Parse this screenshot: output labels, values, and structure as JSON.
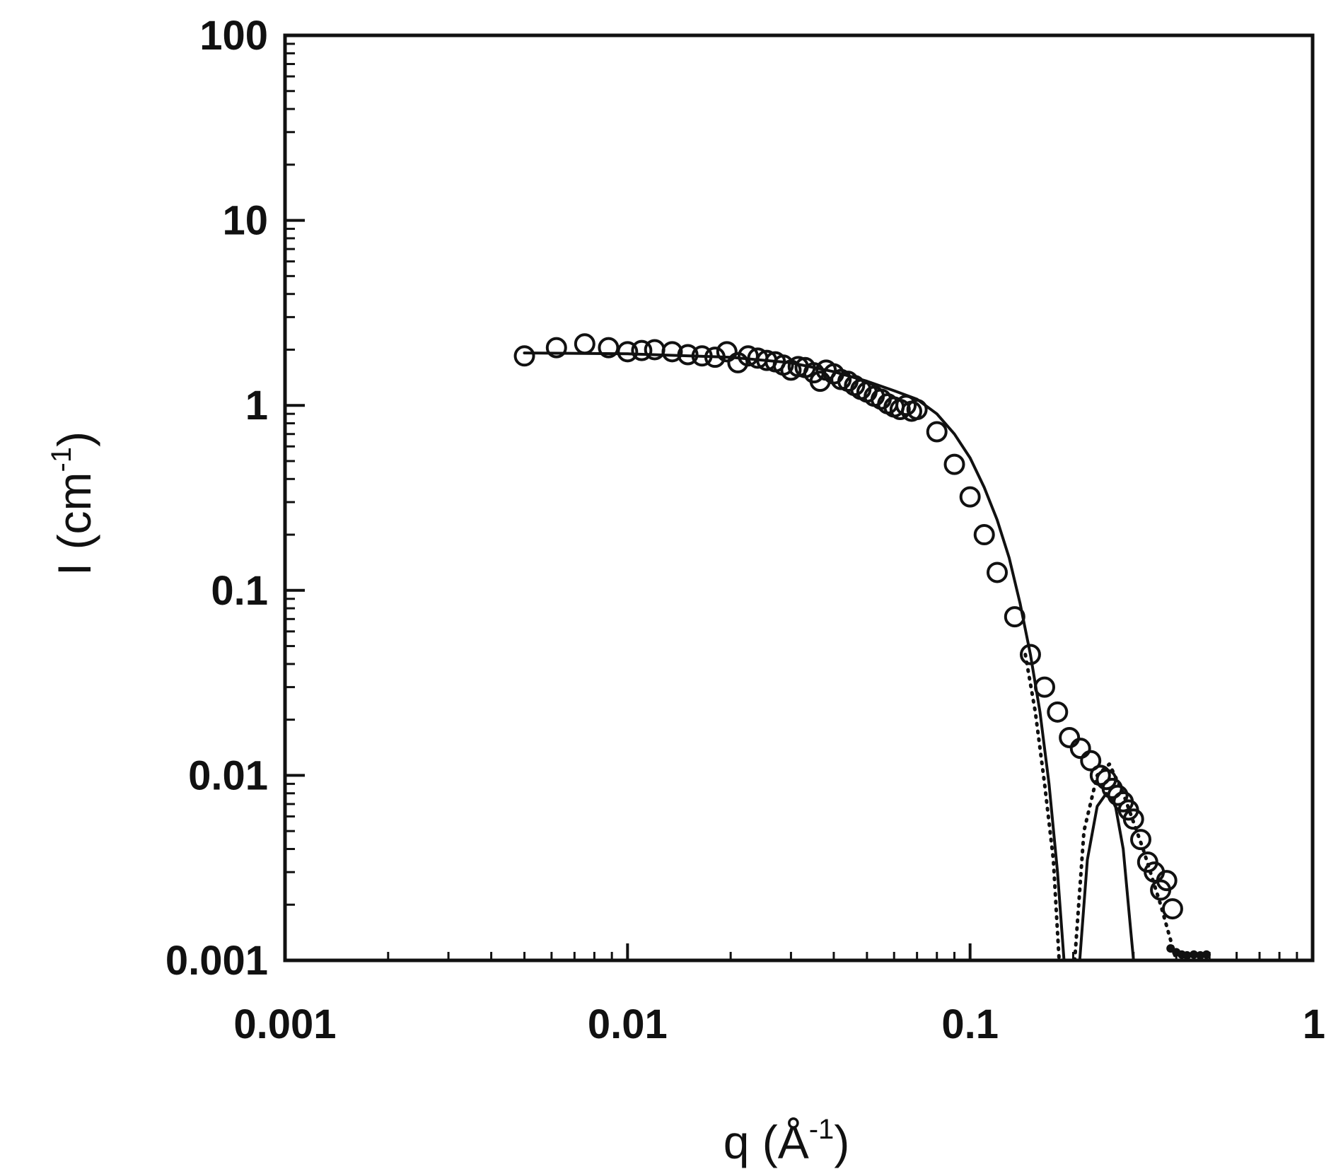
{
  "chart_data": {
    "type": "scatter",
    "title": "",
    "xlabel": {
      "base": "q (Å",
      "sup": "-1",
      "tail": ")"
    },
    "ylabel": {
      "base": "I (cm",
      "sup": "-1",
      "tail": ")"
    },
    "xscale": "log",
    "yscale": "log",
    "xlim": [
      0.001,
      1
    ],
    "ylim": [
      0.001,
      100
    ],
    "grid": false,
    "legend": "none",
    "x_tick_labels": [
      "0.001",
      "0.01",
      "0.1",
      "1"
    ],
    "x_tick_values": [
      0.001,
      0.01,
      0.1,
      1
    ],
    "y_tick_labels": [
      "0.001",
      "0.01",
      "0.1",
      "1",
      "10",
      "100"
    ],
    "y_tick_values": [
      0.001,
      0.01,
      0.1,
      1,
      10,
      100
    ],
    "colors": {
      "ink": "#111111",
      "background": "#ffffff"
    },
    "series": [
      {
        "kind": "markers",
        "marker": "open-circle",
        "points": [
          [
            0.005,
            1.85
          ],
          [
            0.0062,
            2.05
          ],
          [
            0.0075,
            2.15
          ],
          [
            0.0088,
            2.05
          ],
          [
            0.01,
            1.95
          ],
          [
            0.011,
            1.98
          ],
          [
            0.012,
            2.0
          ],
          [
            0.0135,
            1.95
          ],
          [
            0.015,
            1.88
          ],
          [
            0.0165,
            1.85
          ],
          [
            0.018,
            1.82
          ],
          [
            0.0195,
            1.95
          ],
          [
            0.021,
            1.7
          ],
          [
            0.0225,
            1.85
          ],
          [
            0.024,
            1.8
          ],
          [
            0.0255,
            1.75
          ],
          [
            0.027,
            1.72
          ],
          [
            0.0285,
            1.65
          ],
          [
            0.03,
            1.55
          ],
          [
            0.0315,
            1.62
          ],
          [
            0.033,
            1.6
          ],
          [
            0.035,
            1.5
          ],
          [
            0.0365,
            1.35
          ],
          [
            0.038,
            1.55
          ],
          [
            0.04,
            1.48
          ],
          [
            0.042,
            1.38
          ],
          [
            0.044,
            1.35
          ],
          [
            0.046,
            1.28
          ],
          [
            0.048,
            1.22
          ],
          [
            0.05,
            1.18
          ],
          [
            0.0525,
            1.12
          ],
          [
            0.055,
            1.08
          ],
          [
            0.0575,
            1.02
          ],
          [
            0.06,
            0.98
          ],
          [
            0.0625,
            0.95
          ],
          [
            0.065,
            1.0
          ],
          [
            0.0675,
            0.93
          ],
          [
            0.07,
            0.95
          ],
          [
            0.08,
            0.72
          ],
          [
            0.09,
            0.48
          ],
          [
            0.1,
            0.32
          ],
          [
            0.11,
            0.2
          ],
          [
            0.12,
            0.125
          ],
          [
            0.135,
            0.072
          ],
          [
            0.15,
            0.045
          ],
          [
            0.165,
            0.03
          ],
          [
            0.18,
            0.022
          ],
          [
            0.195,
            0.016
          ],
          [
            0.21,
            0.014
          ],
          [
            0.225,
            0.012
          ],
          [
            0.24,
            0.01
          ],
          [
            0.25,
            0.0095
          ],
          [
            0.26,
            0.0085
          ],
          [
            0.27,
            0.0078
          ],
          [
            0.28,
            0.0072
          ],
          [
            0.29,
            0.0065
          ],
          [
            0.3,
            0.0058
          ],
          [
            0.315,
            0.0045
          ],
          [
            0.33,
            0.0034
          ],
          [
            0.345,
            0.003
          ],
          [
            0.36,
            0.0024
          ],
          [
            0.375,
            0.0027
          ],
          [
            0.39,
            0.0019
          ]
        ]
      },
      {
        "kind": "line",
        "style": "solid",
        "points": [
          [
            0.005,
            1.92
          ],
          [
            0.01,
            1.9
          ],
          [
            0.02,
            1.82
          ],
          [
            0.03,
            1.7
          ],
          [
            0.04,
            1.52
          ],
          [
            0.05,
            1.35
          ],
          [
            0.06,
            1.2
          ],
          [
            0.07,
            1.08
          ],
          [
            0.08,
            0.9
          ],
          [
            0.09,
            0.7
          ],
          [
            0.1,
            0.52
          ],
          [
            0.11,
            0.36
          ],
          [
            0.12,
            0.24
          ],
          [
            0.13,
            0.15
          ],
          [
            0.14,
            0.085
          ],
          [
            0.15,
            0.045
          ],
          [
            0.16,
            0.022
          ],
          [
            0.17,
            0.009
          ],
          [
            0.18,
            0.003
          ],
          [
            0.188,
            0.001
          ]
        ]
      },
      {
        "kind": "line",
        "style": "solid",
        "points": [
          [
            0.209,
            0.001
          ],
          [
            0.22,
            0.0035
          ],
          [
            0.235,
            0.0068
          ],
          [
            0.25,
            0.008
          ],
          [
            0.265,
            0.007
          ],
          [
            0.28,
            0.004
          ],
          [
            0.295,
            0.0014
          ],
          [
            0.3,
            0.001
          ]
        ]
      },
      {
        "kind": "line",
        "style": "dotted",
        "points": [
          [
            0.145,
            0.045
          ],
          [
            0.155,
            0.022
          ],
          [
            0.165,
            0.009
          ],
          [
            0.175,
            0.0035
          ],
          [
            0.182,
            0.001
          ]
        ]
      },
      {
        "kind": "line",
        "style": "dotted",
        "points": [
          [
            0.202,
            0.001
          ],
          [
            0.215,
            0.005
          ],
          [
            0.235,
            0.01
          ],
          [
            0.255,
            0.0115
          ],
          [
            0.28,
            0.008
          ],
          [
            0.32,
            0.004
          ],
          [
            0.36,
            0.002
          ],
          [
            0.4,
            0.001
          ]
        ]
      },
      {
        "kind": "markers",
        "marker": "filled-dot",
        "points": [
          [
            0.385,
            0.0011
          ],
          [
            0.4,
            0.00105
          ],
          [
            0.415,
            0.00102
          ],
          [
            0.43,
            0.00101
          ],
          [
            0.45,
            0.00102
          ],
          [
            0.47,
            0.00101
          ],
          [
            0.49,
            0.00102
          ]
        ]
      }
    ]
  }
}
